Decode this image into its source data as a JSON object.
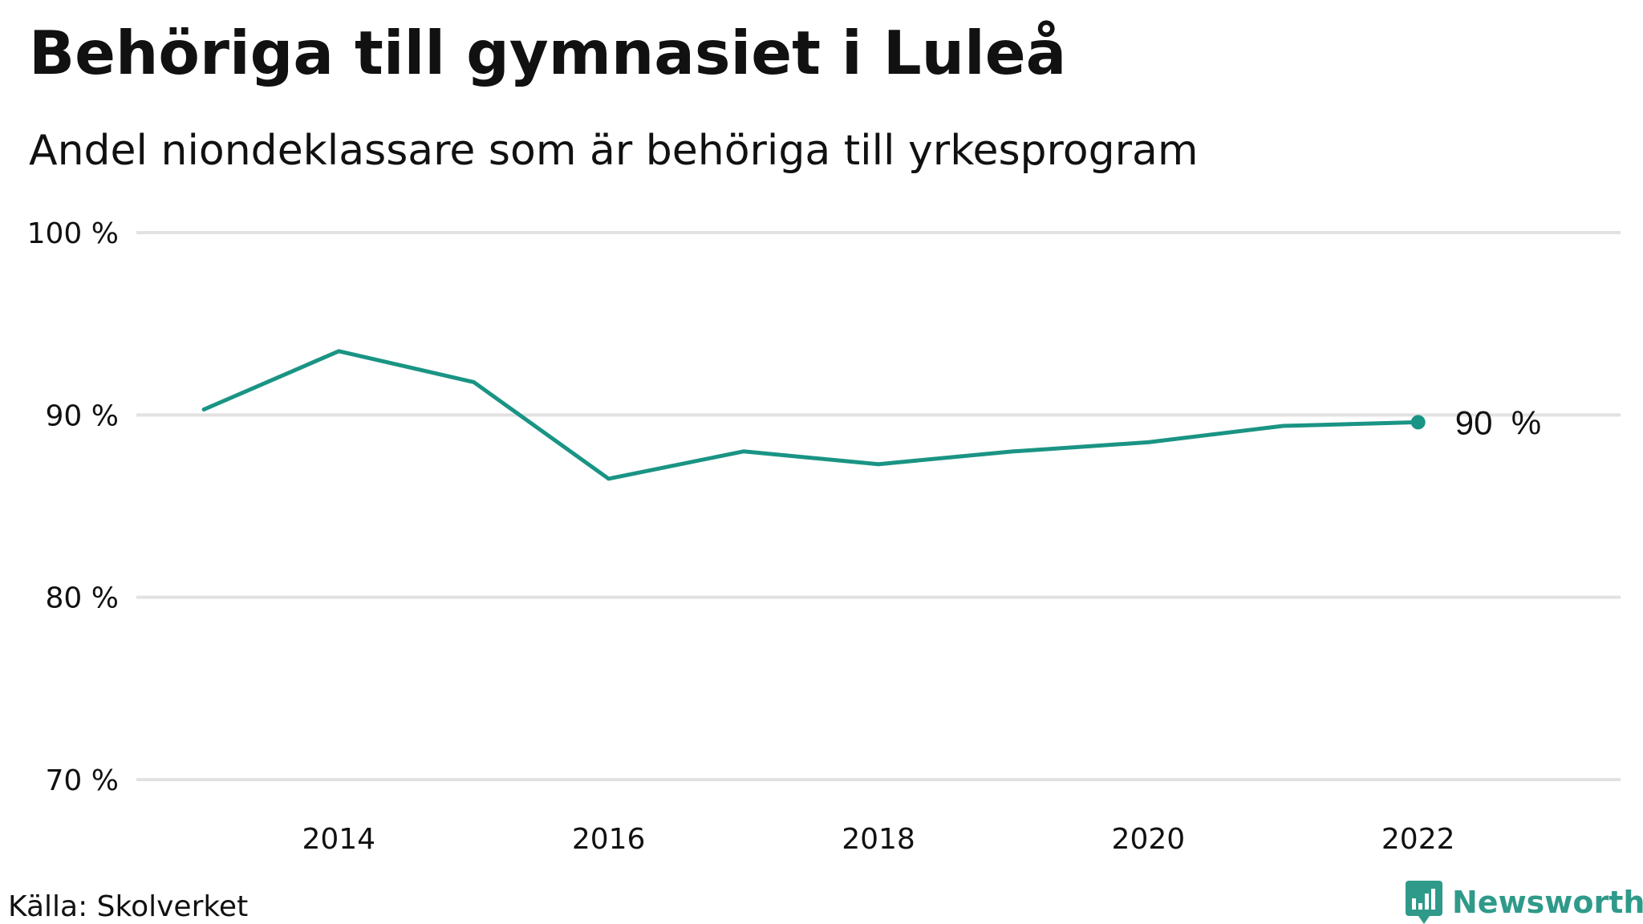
{
  "title": "Behöriga till gymnasiet i Luleå",
  "subtitle": "Andel niondeklassare som är behöriga till yrkesprogram",
  "source": "Källa: Skolverket",
  "brand": "Newsworthy",
  "colors": {
    "line": "#1a9484",
    "grid": "#e2e2e2",
    "text": "#111111",
    "brand": "#2f9a8a"
  },
  "icons": {
    "brand_logo": "newsworthy-bar-chart-icon"
  },
  "chart_data": {
    "type": "line",
    "x": [
      2013,
      2014,
      2015,
      2016,
      2017,
      2018,
      2019,
      2020,
      2021,
      2022
    ],
    "series": [
      {
        "values": [
          90.3,
          93.5,
          91.8,
          86.5,
          88.0,
          87.3,
          88.0,
          88.5,
          89.4,
          89.6
        ]
      }
    ],
    "ylim": [
      70,
      100
    ],
    "yticks": [
      70,
      80,
      90,
      100
    ],
    "ytick_labels": [
      "70 %",
      "80 %",
      "90 %",
      "100 %"
    ],
    "xlim": [
      2012.5,
      2023.5
    ],
    "xticks": [
      2014,
      2016,
      2018,
      2020,
      2022
    ],
    "xtick_labels": [
      "2014",
      "2016",
      "2018",
      "2020",
      "2022"
    ],
    "grid": "horizontal",
    "end_label": "90  %",
    "xlabel": "",
    "ylabel": ""
  }
}
